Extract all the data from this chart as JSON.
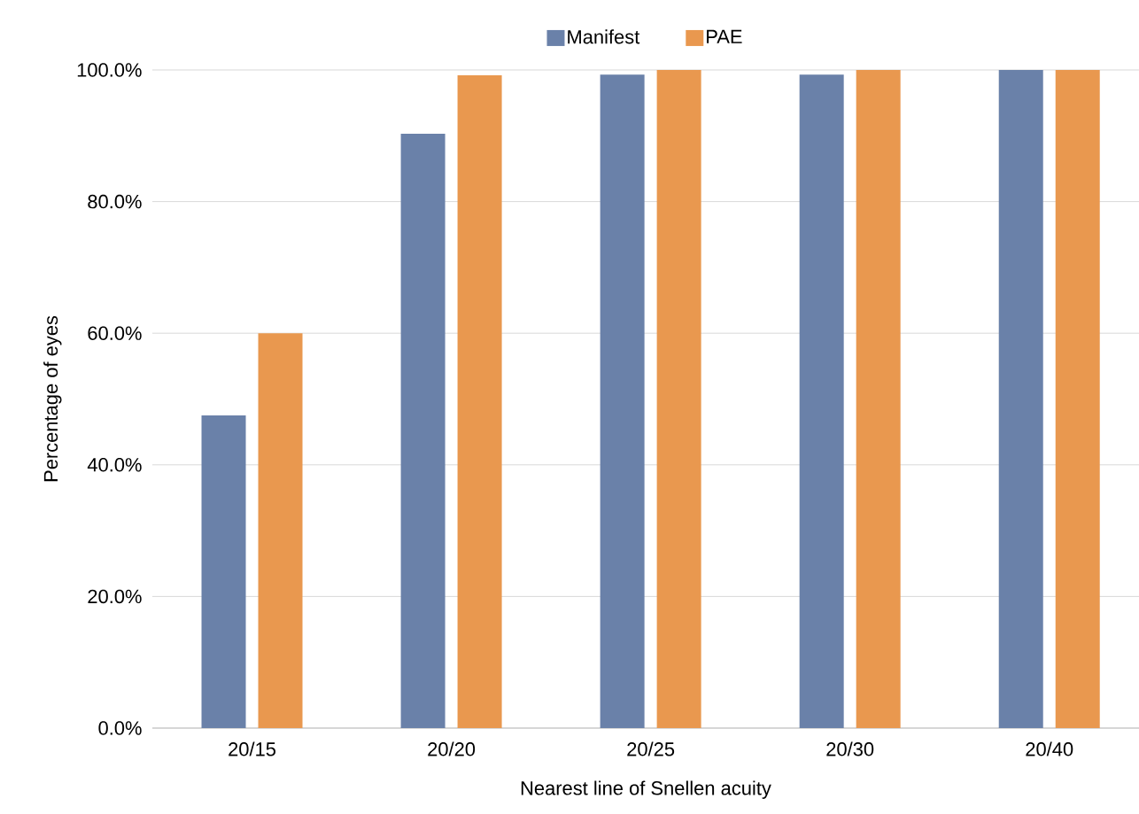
{
  "chart_data": {
    "type": "bar",
    "xlabel": "Nearest line of Snellen acuity",
    "ylabel": "Percentage of eyes",
    "categories": [
      "20/15",
      "20/20",
      "20/25",
      "20/30",
      "20/40"
    ],
    "series": [
      {
        "name": "Manifest",
        "color": "#6a81a9",
        "values": [
          47.5,
          90.3,
          99.3,
          99.3,
          100
        ]
      },
      {
        "name": "PAE",
        "color": "#e9984f",
        "values": [
          60.0,
          99.2,
          100,
          100,
          100
        ]
      }
    ],
    "ylim": [
      0,
      100
    ],
    "yticks": [
      {
        "value": 0,
        "label": "0.0%"
      },
      {
        "value": 20,
        "label": "20.0%"
      },
      {
        "value": 40,
        "label": "40.0%"
      },
      {
        "value": 60,
        "label": "60.0%"
      },
      {
        "value": 80,
        "label": "80.0%"
      },
      {
        "value": 100,
        "label": "100.0%"
      }
    ],
    "grid": "y",
    "legend": "top"
  }
}
